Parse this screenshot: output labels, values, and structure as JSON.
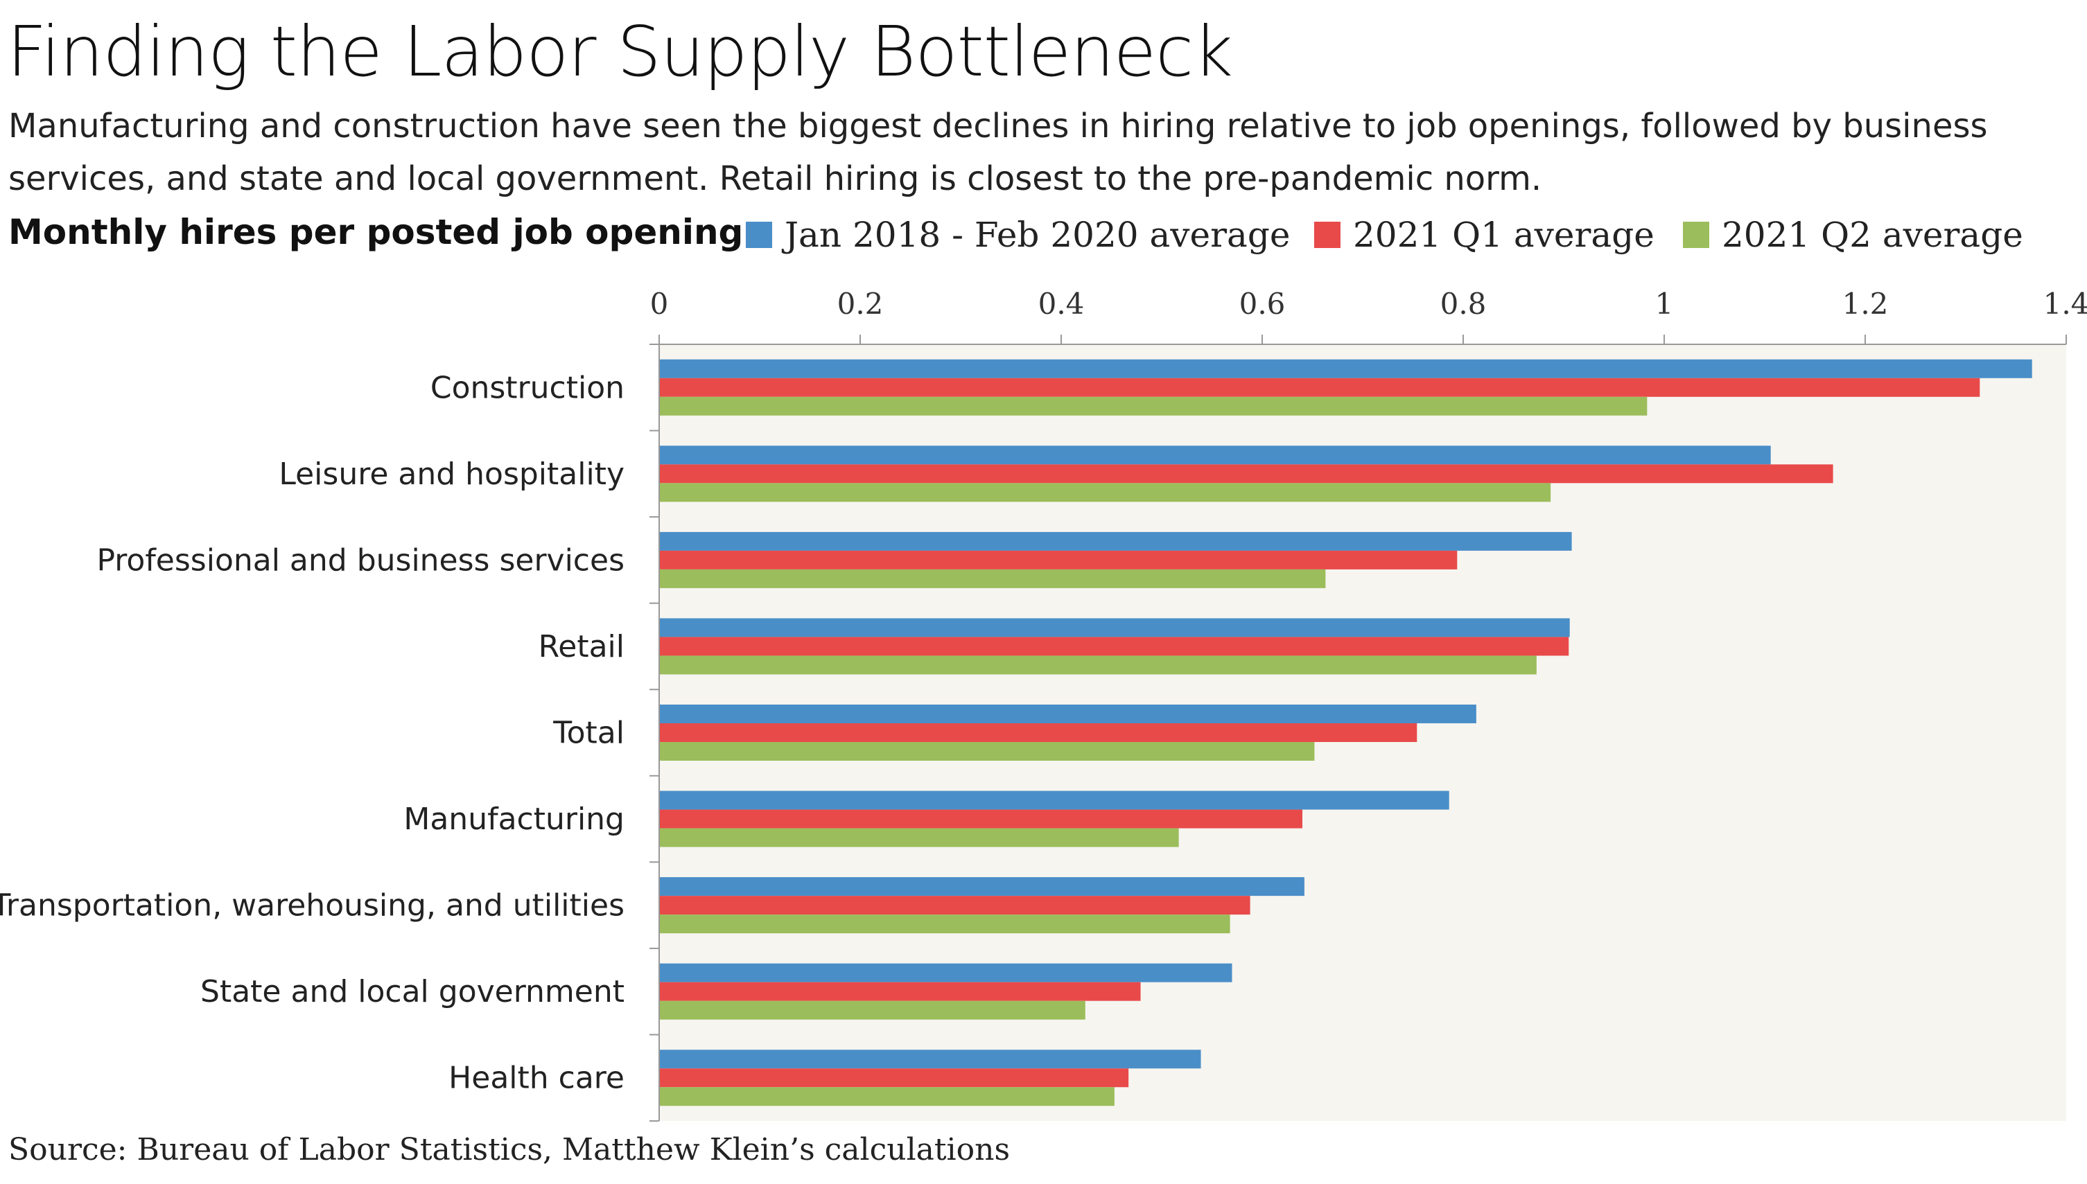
{
  "header": {
    "title": "Finding the Labor Supply Bottleneck",
    "subtitle": "Manufacturing and construction have seen the biggest declines in hiring relative to job openings, followed by business services, and state and local government. Retail hiring is closest to the pre-pandemic norm.",
    "chart_label": "Monthly hires per posted job opening"
  },
  "footer": {
    "source": "Source: Bureau of Labor Statistics, Matthew Klein’s calculations"
  },
  "chart_data": {
    "type": "bar",
    "orientation": "horizontal",
    "title": "Finding the Labor Supply Bottleneck",
    "xlabel": "Monthly hires per posted job opening",
    "ylabel": "",
    "xlim": [
      0,
      1.4
    ],
    "xticks": [
      "0",
      "0.2",
      "0.4",
      "0.6",
      "0.8",
      "1",
      "1.2",
      "1.4"
    ],
    "grid": false,
    "legend_position": "top",
    "categories": [
      "Construction",
      "Leisure and hospitality",
      "Professional and business services",
      "Retail",
      "Total",
      "Manufacturing",
      "Transportation, warehousing, and utilities",
      "State and local government",
      "Health care"
    ],
    "series": [
      {
        "name": "Jan 2018 - Feb 2020 average",
        "color": "#4a8ec8",
        "values": [
          1.366,
          1.106,
          0.908,
          0.906,
          0.813,
          0.786,
          0.642,
          0.57,
          0.539
        ]
      },
      {
        "name": "2021 Q1 average",
        "color": "#e84a4a",
        "values": [
          1.314,
          1.168,
          0.794,
          0.905,
          0.754,
          0.64,
          0.588,
          0.479,
          0.467
        ]
      },
      {
        "name": "2021 Q2 average",
        "color": "#9cbd5b",
        "values": [
          0.983,
          0.887,
          0.663,
          0.873,
          0.652,
          0.517,
          0.568,
          0.424,
          0.453
        ]
      }
    ]
  }
}
